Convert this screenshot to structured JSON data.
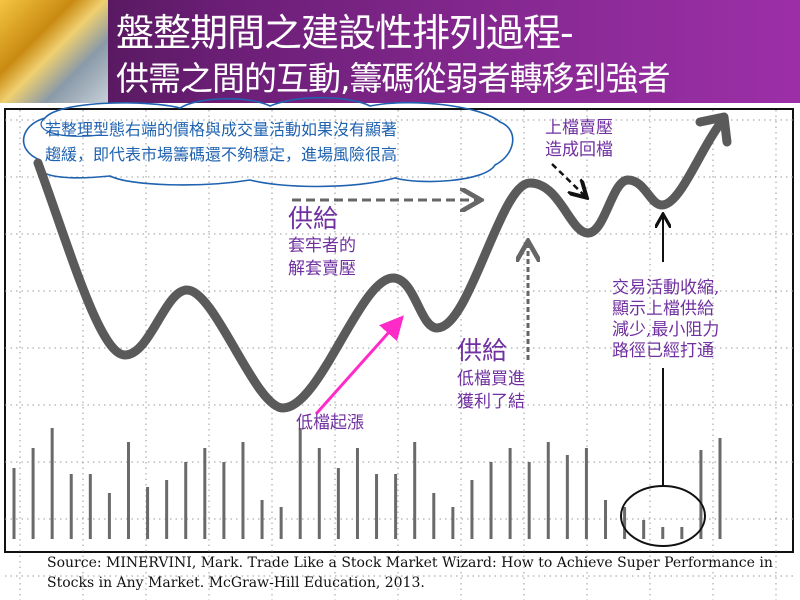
{
  "header": {
    "title": "盤整期間之建設性排列過程-",
    "subtitle": "供需之間的互動,籌碼從弱者轉移到強者"
  },
  "diagram": {
    "cloud_note": [
      "若整理型態右端的價格與成交量活動如果沒有顯著",
      "趨緩，即代表市場籌碼還不夠穩定，進場風險很高"
    ],
    "upper_pressure": [
      "上檔賣壓",
      "造成回檔"
    ],
    "supply1": {
      "heading": "供給",
      "lines": [
        "套牢者的",
        "解套賣壓"
      ]
    },
    "supply2": {
      "heading": "供給",
      "lines": [
        "低檔買進",
        "獲利了結"
      ]
    },
    "low_rise": "低檔起漲",
    "contraction_note": [
      "交易活動收縮,",
      "顯示上檔供給",
      "減少,最小阻力",
      "路徑已經打通"
    ],
    "volume_bars": [
      71,
      91,
      111,
      65,
      65,
      46,
      97,
      52,
      59,
      77,
      91,
      77,
      97,
      39,
      32,
      111,
      91,
      71,
      91,
      65,
      65,
      97,
      46,
      32,
      59,
      77,
      91,
      77,
      97,
      84,
      91,
      39,
      32,
      19,
      12,
      12,
      89,
      101
    ],
    "colors": {
      "header": "#7a2585",
      "label": "#7030a0",
      "cloud": "#1f62b0",
      "price_line": "#5a5a5a",
      "rise_arrow": "#ff2bc8"
    }
  },
  "footer": {
    "source": "Source: MINERVINI, Mark. Trade Like a Stock Market Wizard: How to Achieve Super Performance in Stocks in Any Market. McGraw-Hill Education, 2013."
  }
}
